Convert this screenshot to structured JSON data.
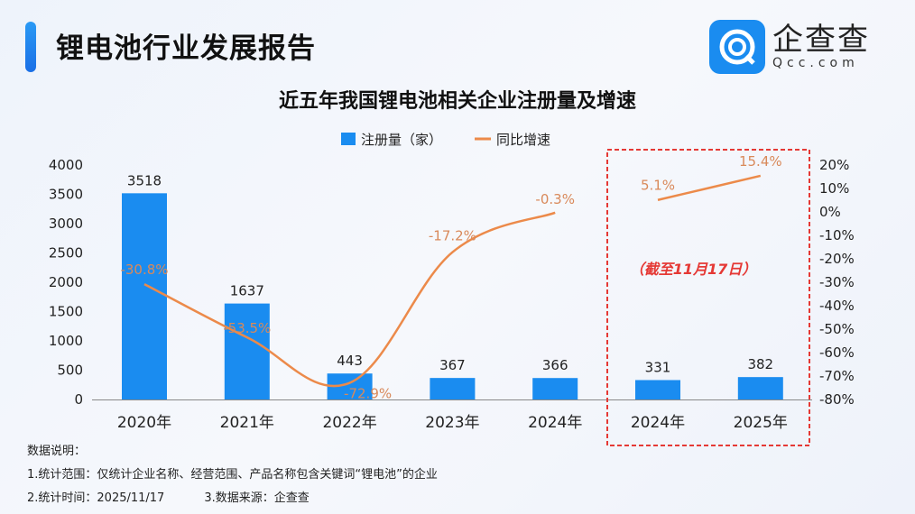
{
  "header": {
    "title": "锂电池行业发展报告",
    "logo_cn": "企查查",
    "logo_en": "Qcc.com"
  },
  "chart_data": {
    "type": "bar+line",
    "title": "近五年我国锂电池相关企业注册量及增速",
    "categories": [
      "2020年",
      "2021年",
      "2022年",
      "2023年",
      "2024年",
      "2024年",
      "2025年"
    ],
    "series": [
      {
        "name": "注册量（家）",
        "type": "bar",
        "axis": "left",
        "color": "#1a8cf0",
        "values": [
          3518,
          1637,
          443,
          367,
          366,
          331,
          382
        ]
      },
      {
        "name": "同比增速",
        "type": "line",
        "axis": "right",
        "color": "#ec8a4a",
        "values": [
          -30.8,
          -53.5,
          -72.9,
          -17.2,
          -0.3,
          5.1,
          15.4
        ],
        "labels": [
          "-30.8%",
          "-53.5%",
          "-72.9%",
          "-17.2%",
          "-0.3%",
          "5.1%",
          "15.4%"
        ],
        "segments": [
          [
            0,
            4
          ],
          [
            5,
            6
          ]
        ]
      }
    ],
    "left_axis": {
      "ylim": [
        0,
        4000
      ],
      "ticks": [
        0,
        500,
        1000,
        1500,
        2000,
        2500,
        3000,
        3500,
        4000
      ]
    },
    "right_axis": {
      "ylim": [
        -80,
        20
      ],
      "ticks": [
        "20%",
        "10%",
        "0%",
        "-10%",
        "-20%",
        "-30%",
        "-40%",
        "-50%",
        "-60%",
        "-70%",
        "-80%"
      ]
    },
    "legend": {
      "placement": "top-center"
    },
    "grid": false,
    "annotation": {
      "text": "（截至11月17日）",
      "color": "#e53935"
    }
  },
  "notes": {
    "heading": "数据说明：",
    "line1": "1.统计范围：仅统计企业名称、经营范围、产品名称包含关键词“锂电池”的企业",
    "line2a": "2.统计时间：2025/11/17",
    "line2b": "3.数据来源：企查查"
  }
}
